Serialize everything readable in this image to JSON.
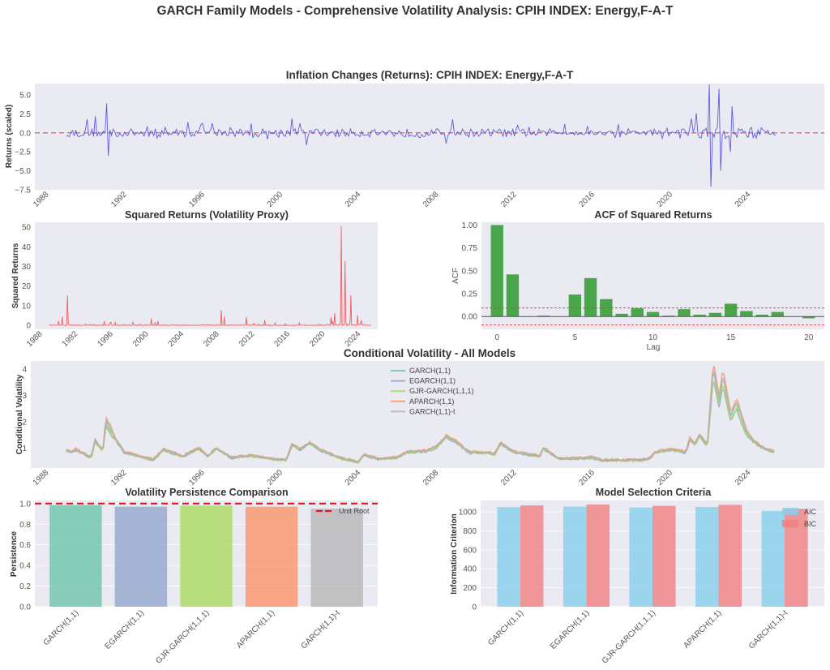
{
  "figure": {
    "suptitle": "GARCH Family Models - Comprehensive Volatility Analysis: CPIH INDEX: Energy,F-A-T"
  },
  "colors": {
    "axes_bg": "#eaeaf2",
    "returns_line": "#4444dd",
    "zero_line": "#e8474a",
    "squared_line": "#ee4444",
    "acf_bar": "#2e9a2e",
    "acf_conf": "#ee3333",
    "aic": "#87ceeb",
    "bic": "#f08080",
    "models": [
      "#66c2a5",
      "#8da0cb",
      "#a6d854",
      "#fc8d62",
      "#b3b3b3"
    ]
  },
  "chart_data": [
    {
      "id": "returns",
      "type": "line",
      "title": "Inflation Changes (Returns): CPIH INDEX: Energy,F-A-T",
      "xlabel": "",
      "ylabel": "Returns (scaled)",
      "xlim": [
        1987.4,
        2027.9
      ],
      "ylim": [
        -7.5,
        6.5
      ],
      "x_ticks": [
        "1988",
        "1992",
        "1996",
        "2000",
        "2004",
        "2008",
        "2012",
        "2016",
        "2020",
        "2024"
      ],
      "y_ticks": [
        "5.0",
        "2.5",
        "0.0",
        "−2.5",
        "−5.0",
        "−7.5"
      ],
      "y_tick_values": [
        5,
        2.5,
        0,
        -2.5,
        -5,
        -7.5
      ],
      "reference_line": 0,
      "series_start": 1989.0,
      "series_end": 2025.4,
      "spikes": [
        {
          "x": 1991.1,
          "y": 3.9
        },
        {
          "x": 1991.2,
          "y": -3.0
        },
        {
          "x": 1990.5,
          "y": 2.2
        },
        {
          "x": 1990.1,
          "y": 1.8
        },
        {
          "x": 2000.6,
          "y": 1.9
        },
        {
          "x": 2001.3,
          "y": -1.6
        },
        {
          "x": 2008.5,
          "y": -1.4
        },
        {
          "x": 2008.8,
          "y": 1.8
        },
        {
          "x": 2022.0,
          "y": 6.4
        },
        {
          "x": 2022.1,
          "y": -7.1
        },
        {
          "x": 2022.5,
          "y": 5.8
        },
        {
          "x": 2022.6,
          "y": -5.0
        },
        {
          "x": 2023.2,
          "y": 3.5
        },
        {
          "x": 2023.1,
          "y": -2.5
        },
        {
          "x": 2021.3,
          "y": 2.6
        },
        {
          "x": 2021.1,
          "y": 1.9
        }
      ]
    },
    {
      "id": "squared",
      "type": "line",
      "title": "Squared Returns (Volatility Proxy)",
      "ylabel": "Squared Returns",
      "xlim": [
        1987.4,
        2026.2
      ],
      "ylim": [
        -2,
        52.5
      ],
      "x_ticks": [
        "1988",
        "1992",
        "1996",
        "2000",
        "2004",
        "2008",
        "2012",
        "2016",
        "2020",
        "2024"
      ],
      "y_ticks": [
        "0",
        "10",
        "20",
        "30",
        "40",
        "50"
      ],
      "y_tick_values": [
        0,
        10,
        20,
        30,
        40,
        50
      ],
      "peaks": [
        {
          "x": 1991.1,
          "y": 15.2
        },
        {
          "x": 1990.5,
          "y": 4.5
        },
        {
          "x": 2000.6,
          "y": 3.5
        },
        {
          "x": 2008.5,
          "y": 7.8
        },
        {
          "x": 2008.8,
          "y": 4.5
        },
        {
          "x": 2011.3,
          "y": 4.2
        },
        {
          "x": 2013.4,
          "y": 2.8
        },
        {
          "x": 2020.9,
          "y": 4.2
        },
        {
          "x": 2021.3,
          "y": 6.2
        },
        {
          "x": 2022.1,
          "y": 50.5
        },
        {
          "x": 2022.5,
          "y": 32.8
        },
        {
          "x": 2023.2,
          "y": 15.2
        },
        {
          "x": 2023.9,
          "y": 5.0
        },
        {
          "x": 2024.3,
          "y": 2.6
        }
      ]
    },
    {
      "id": "acf",
      "type": "bar",
      "title": "ACF of Squared Returns",
      "xlabel": "Lag",
      "ylabel": "ACF",
      "xlim": [
        -1,
        21
      ],
      "ylim": [
        -0.14,
        1.03
      ],
      "x_ticks": [
        "0",
        "5",
        "10",
        "15",
        "20"
      ],
      "x_tick_values": [
        0,
        5,
        10,
        15,
        20
      ],
      "y_ticks": [
        "1.00",
        "0.75",
        "0.50",
        "0.25",
        "0.00"
      ],
      "y_tick_values": [
        1.0,
        0.75,
        0.5,
        0.25,
        0.0
      ],
      "lags": [
        0,
        1,
        2,
        3,
        4,
        5,
        6,
        7,
        8,
        9,
        10,
        11,
        12,
        13,
        14,
        15,
        16,
        17,
        18,
        19,
        20
      ],
      "values": [
        1.0,
        0.46,
        0.0,
        0.01,
        0.0,
        0.24,
        0.42,
        0.19,
        0.03,
        0.09,
        0.05,
        0.01,
        0.08,
        0.02,
        0.04,
        0.14,
        0.06,
        0.02,
        0.05,
        0.0,
        -0.02
      ],
      "conf_band": 0.093
    },
    {
      "id": "cond_vol",
      "type": "line",
      "title": "Conditional Volatility - All Models",
      "ylabel": "Conditional Volatility",
      "xlim": [
        1987.2,
        2027.9
      ],
      "ylim": [
        0.25,
        4.3
      ],
      "x_ticks": [
        "1988",
        "1992",
        "1996",
        "2000",
        "2004",
        "2008",
        "2012",
        "2016",
        "2020",
        "2024"
      ],
      "y_ticks": [
        "4",
        "3",
        "2",
        "1"
      ],
      "y_tick_values": [
        4,
        3,
        2,
        1
      ],
      "legend": [
        "GARCH(1,1)",
        "EGARCH(1,1)",
        "GJR-GARCH(1,1,1)",
        "APARCH(1,1)",
        "GARCH(1,1)-t"
      ],
      "legend_position": "upper-center",
      "anchors": [
        [
          1989.0,
          0.95
        ],
        [
          1989.3,
          0.85
        ],
        [
          1989.5,
          0.95
        ],
        [
          1990.0,
          0.75
        ],
        [
          1990.3,
          0.65
        ],
        [
          1990.5,
          1.3
        ],
        [
          1990.9,
          0.9
        ],
        [
          1991.05,
          2.05
        ],
        [
          1991.5,
          1.4
        ],
        [
          1992.0,
          0.85
        ],
        [
          1993.0,
          0.65
        ],
        [
          1993.5,
          0.58
        ],
        [
          1994.0,
          0.95
        ],
        [
          1995.0,
          0.7
        ],
        [
          1995.8,
          1.0
        ],
        [
          1996.3,
          0.7
        ],
        [
          1996.7,
          1.0
        ],
        [
          1997.5,
          0.65
        ],
        [
          1998.5,
          0.72
        ],
        [
          1999.5,
          0.6
        ],
        [
          2000.3,
          0.55
        ],
        [
          2000.6,
          1.15
        ],
        [
          2001.0,
          0.95
        ],
        [
          2001.5,
          1.2
        ],
        [
          2002.0,
          0.95
        ],
        [
          2003.0,
          0.65
        ],
        [
          2004.0,
          0.48
        ],
        [
          2004.3,
          0.75
        ],
        [
          2005.0,
          0.6
        ],
        [
          2006.0,
          0.65
        ],
        [
          2006.5,
          0.85
        ],
        [
          2007.5,
          0.9
        ],
        [
          2008.0,
          1.05
        ],
        [
          2008.5,
          1.45
        ],
        [
          2009.0,
          1.25
        ],
        [
          2009.7,
          0.85
        ],
        [
          2011.0,
          0.8
        ],
        [
          2011.3,
          1.2
        ],
        [
          2012.0,
          0.85
        ],
        [
          2013.3,
          0.7
        ],
        [
          2013.5,
          1.0
        ],
        [
          2014.3,
          0.6
        ],
        [
          2016.0,
          0.65
        ],
        [
          2016.5,
          0.55
        ],
        [
          2018.5,
          0.55
        ],
        [
          2018.9,
          0.6
        ],
        [
          2019.2,
          0.85
        ],
        [
          2020.0,
          0.95
        ],
        [
          2020.8,
          0.85
        ],
        [
          2021.0,
          1.35
        ],
        [
          2021.3,
          1.15
        ],
        [
          2021.5,
          1.5
        ],
        [
          2021.9,
          1.1
        ],
        [
          2022.2,
          4.0
        ],
        [
          2022.5,
          2.8
        ],
        [
          2022.7,
          3.7
        ],
        [
          2023.1,
          2.2
        ],
        [
          2023.4,
          2.7
        ],
        [
          2023.9,
          1.6
        ],
        [
          2024.3,
          1.25
        ],
        [
          2024.8,
          1.0
        ],
        [
          2025.4,
          0.85
        ]
      ]
    },
    {
      "id": "persistence",
      "type": "bar",
      "title": "Volatility Persistence Comparison",
      "ylabel": "Persistence",
      "categories": [
        "GARCH(1,1)",
        "EGARCH(1,1)",
        "GJR-GARCH(1,1,1)",
        "APARCH(1,1)",
        "GARCH(1,1)-t"
      ],
      "values": [
        0.985,
        0.97,
        0.98,
        0.97,
        0.95
      ],
      "ylim": [
        0,
        1.03
      ],
      "y_ticks": [
        "0.0",
        "0.2",
        "0.4",
        "0.6",
        "0.8",
        "1.0"
      ],
      "y_tick_values": [
        0,
        0.2,
        0.4,
        0.6,
        0.8,
        1.0
      ],
      "reference_line": 1.0,
      "legend": [
        "Unit Root"
      ],
      "legend_position": "upper-right"
    },
    {
      "id": "info_criteria",
      "type": "bar",
      "title": "Model Selection Criteria",
      "ylabel": "Information Criterion",
      "categories": [
        "GARCH(1,1)",
        "EGARCH(1,1)",
        "GJR-GARCH(1,1,1)",
        "APARCH(1,1)",
        "GARCH(1,1)-t"
      ],
      "series": [
        {
          "name": "AIC",
          "values": [
            1050,
            1055,
            1045,
            1052,
            1010
          ]
        },
        {
          "name": "BIC",
          "values": [
            1068,
            1077,
            1063,
            1074,
            1032
          ]
        }
      ],
      "ylim": [
        0,
        1120
      ],
      "y_ticks": [
        "0",
        "200",
        "400",
        "600",
        "800",
        "1000"
      ],
      "y_tick_values": [
        0,
        200,
        400,
        600,
        800,
        1000
      ],
      "legend_position": "upper-right"
    }
  ]
}
